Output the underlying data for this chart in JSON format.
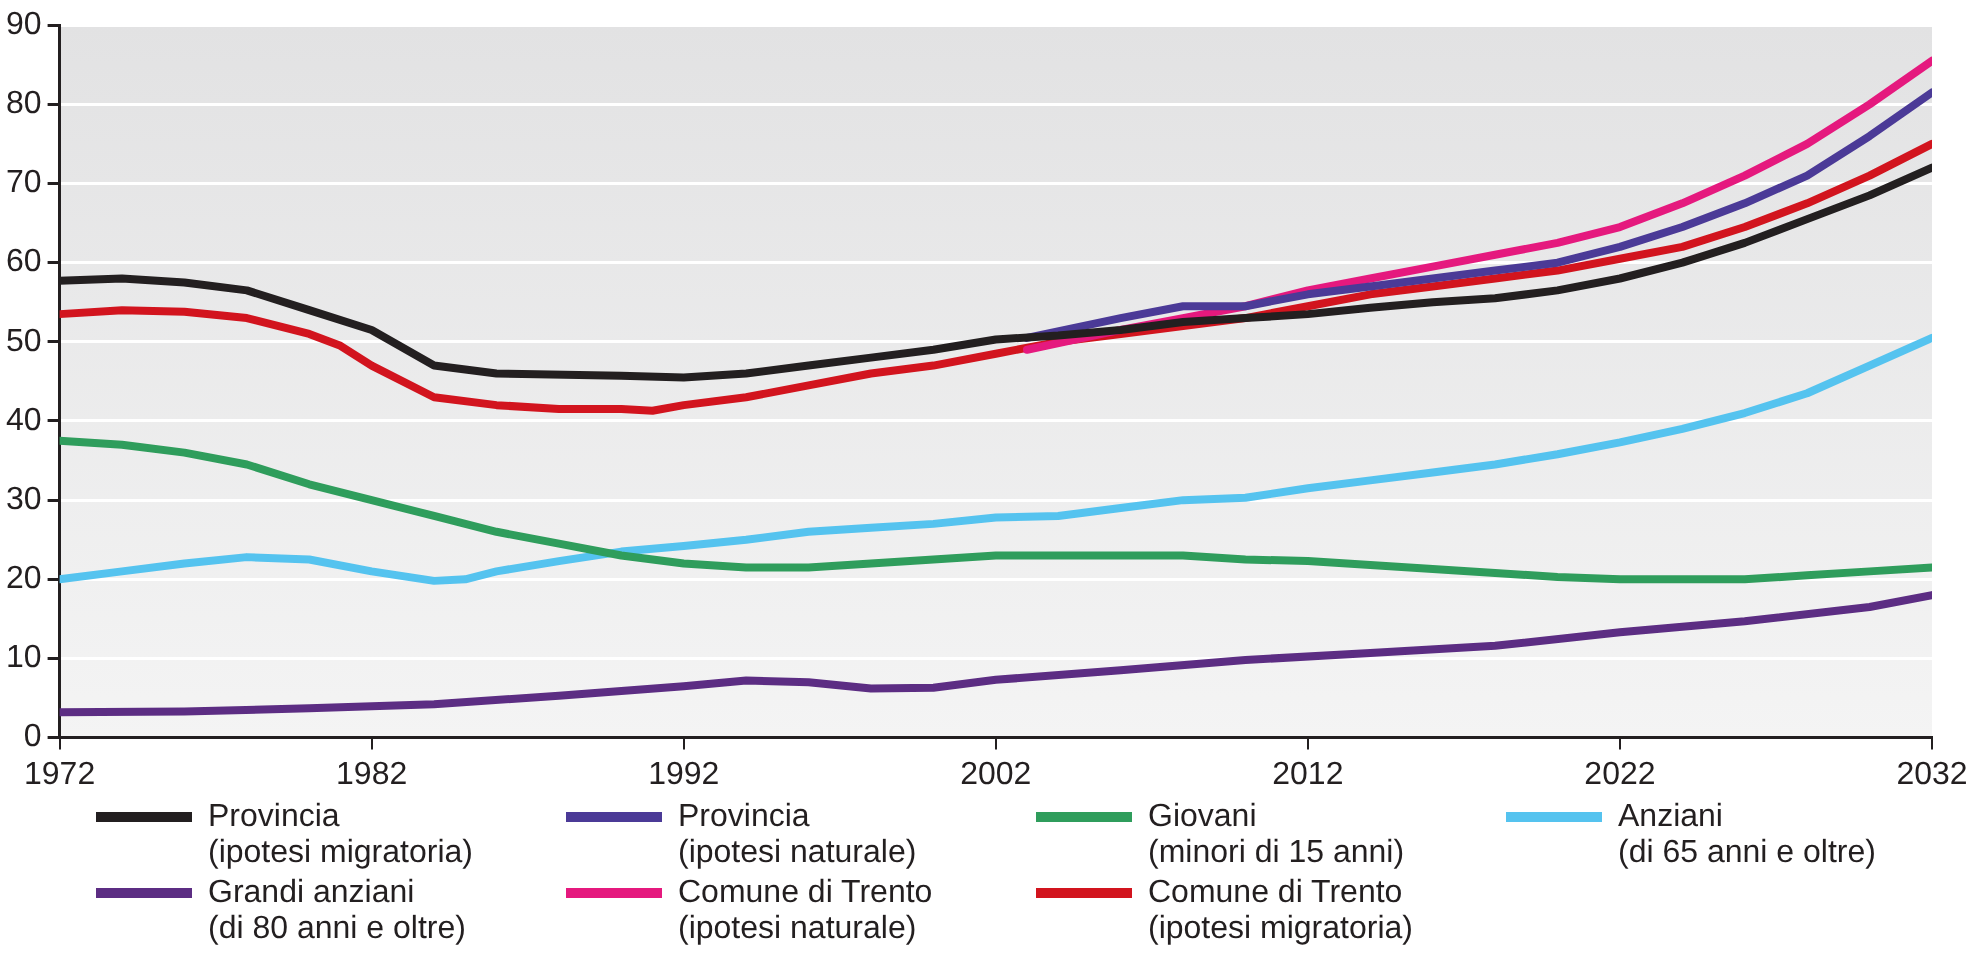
{
  "chart_data": {
    "type": "line",
    "xlim": [
      1972,
      2032
    ],
    "xticks": [
      1972,
      1982,
      1992,
      2002,
      2012,
      2022,
      2032
    ],
    "ylim": [
      0,
      90
    ],
    "yticks": [
      0,
      10,
      20,
      30,
      40,
      50,
      60,
      70,
      80,
      90
    ],
    "grid": "y",
    "legend": "bottom",
    "marker": "none",
    "line_style": "solid",
    "series": [
      {
        "name": "Provincia\n(ipotesi migratoria)",
        "color": "#231f20",
        "x": [
          1972,
          1974,
          1976,
          1978,
          1980,
          1982,
          1984,
          1986,
          1990,
          1992,
          1994,
          1996,
          1998,
          2000,
          2002,
          2004,
          2006,
          2008,
          2010,
          2012,
          2014,
          2016,
          2018,
          2020,
          2022,
          2024,
          2026,
          2028,
          2030,
          2032
        ],
        "values": [
          57.7,
          58,
          57.5,
          56.5,
          54,
          51.5,
          47,
          46,
          45.7,
          45.5,
          46,
          47,
          48,
          49,
          50.3,
          50.8,
          51.5,
          52.5,
          53,
          53.5,
          54.3,
          55,
          55.5,
          56.5,
          58,
          60,
          62.5,
          65.5,
          68.5,
          72
        ]
      },
      {
        "name": "Provincia\n(ipotesi naturale)",
        "color": "#4b3a97",
        "x": [
          2003,
          2006,
          2008,
          2010,
          2012,
          2014,
          2016,
          2018,
          2020,
          2022,
          2024,
          2026,
          2028,
          2030,
          2032
        ],
        "values": [
          50.5,
          53,
          54.5,
          54.5,
          56,
          57,
          58,
          59,
          60,
          62,
          64.5,
          67.5,
          71,
          76,
          81.5
        ]
      },
      {
        "name": "Giovani\n(minori di 15 anni)",
        "color": "#2f9d5c",
        "x": [
          1972,
          1974,
          1976,
          1978,
          1980,
          1982,
          1984,
          1986,
          1988,
          1990,
          1992,
          1994,
          1996,
          1998,
          2000,
          2002,
          2004,
          2006,
          2008,
          2010,
          2012,
          2014,
          2016,
          2018,
          2020,
          2022,
          2024,
          2026,
          2028,
          2030,
          2032
        ],
        "values": [
          37.5,
          37,
          36,
          34.5,
          32,
          30,
          28,
          26,
          24.5,
          23,
          22,
          21.5,
          21.5,
          22,
          22.5,
          23,
          23,
          23,
          23,
          22.5,
          22.3,
          21.8,
          21.3,
          20.8,
          20.3,
          20,
          20,
          20,
          20.5,
          21,
          21.5
        ]
      },
      {
        "name": "Anziani\n(di 65 anni e oltre)",
        "color": "#55c3ef",
        "x": [
          1972,
          1974,
          1976,
          1978,
          1980,
          1982,
          1984,
          1985,
          1986,
          1988,
          1990,
          1992,
          1994,
          1996,
          1998,
          2000,
          2002,
          2004,
          2006,
          2008,
          2010,
          2012,
          2014,
          2016,
          2018,
          2020,
          2022,
          2024,
          2026,
          2028,
          2030,
          2032
        ],
        "values": [
          20,
          21,
          22,
          22.8,
          22.5,
          21,
          19.8,
          20,
          21,
          22.3,
          23.5,
          24.2,
          25,
          26,
          26.5,
          27,
          27.8,
          28,
          29,
          30,
          30.3,
          31.5,
          32.5,
          33.5,
          34.5,
          35.8,
          37.3,
          39,
          41,
          43.5,
          47,
          50.5
        ]
      },
      {
        "name": "Grandi anziani\n(di 80 anni e oltre)",
        "color": "#5c2d83",
        "x": [
          1972,
          1976,
          1980,
          1984,
          1988,
          1992,
          1994,
          1996,
          1998,
          2000,
          2002,
          2006,
          2010,
          2014,
          2018,
          2022,
          2026,
          2030,
          2032
        ],
        "values": [
          3.2,
          3.3,
          3.7,
          4.2,
          5.3,
          6.5,
          7.2,
          7,
          6.2,
          6.3,
          7.3,
          8.5,
          9.8,
          10.7,
          11.6,
          13.3,
          14.7,
          16.5,
          18
        ]
      },
      {
        "name": "Comune di Trento\n(ipotesi naturale)",
        "color": "#e5197e",
        "x": [
          2003,
          2006,
          2008,
          2010,
          2012,
          2014,
          2016,
          2018,
          2020,
          2022,
          2024,
          2026,
          2028,
          2030,
          2032
        ],
        "values": [
          49,
          51.5,
          53,
          54.5,
          56.5,
          58,
          59.5,
          61,
          62.5,
          64.5,
          67.5,
          71,
          75,
          80,
          85.5
        ]
      },
      {
        "name": "Comune di Trento\n(ipotesi migratoria)",
        "color": "#d2141e",
        "x": [
          1972,
          1974,
          1976,
          1978,
          1980,
          1981,
          1982,
          1984,
          1986,
          1988,
          1990,
          1991,
          1992,
          1994,
          1996,
          1998,
          2000,
          2002,
          2004,
          2006,
          2008,
          2010,
          2012,
          2014,
          2016,
          2018,
          2020,
          2022,
          2024,
          2026,
          2028,
          2030,
          2032
        ],
        "values": [
          53.5,
          54,
          53.8,
          53,
          51,
          49.5,
          47,
          43,
          42,
          41.5,
          41.5,
          41.3,
          42,
          43,
          44.5,
          46,
          47,
          48.5,
          50,
          51,
          52,
          53,
          54.5,
          56,
          57,
          58,
          59,
          60.5,
          62,
          64.5,
          67.5,
          71,
          75
        ]
      }
    ]
  }
}
